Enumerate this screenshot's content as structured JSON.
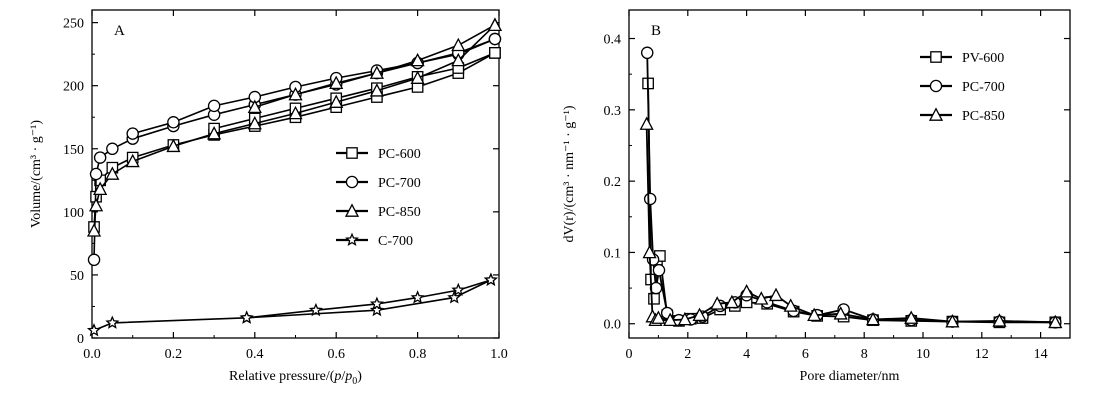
{
  "chart_data": [
    {
      "type": "line",
      "panel_label": "A",
      "xlabel": "Relative pressure/(p/p0)",
      "xlabel_parts": [
        "Relative pressure/(",
        "p",
        "/",
        "p",
        "0",
        ")"
      ],
      "ylabel": "Volume/(cm³ · g⁻¹)",
      "xlim": [
        0.0,
        1.0
      ],
      "ylim": [
        0,
        260
      ],
      "xticks": [
        "0.0",
        "0.2",
        "0.4",
        "0.6",
        "0.8",
        "1.0"
      ],
      "xtick_values": [
        0.0,
        0.2,
        0.4,
        0.6,
        0.8,
        1.0
      ],
      "yticks": [
        "0",
        "50",
        "100",
        "150",
        "200",
        "250"
      ],
      "ytick_values": [
        0,
        50,
        100,
        150,
        200,
        250
      ],
      "legend_position": "center-right",
      "series": [
        {
          "name": "PC-600",
          "marker": "square",
          "adsorption": {
            "x": [
              0.005,
              0.01,
              0.02,
              0.05,
              0.1,
              0.2,
              0.3,
              0.4,
              0.5,
              0.6,
              0.7,
              0.8,
              0.9,
              0.99
            ],
            "y": [
              88,
              112,
              125,
              135,
              143,
              153,
              161,
              168,
              175,
              183,
              191,
              199,
              210,
              226
            ]
          },
          "desorption": {
            "x": [
              0.99,
              0.9,
              0.8,
              0.7,
              0.6,
              0.5,
              0.4,
              0.3
            ],
            "y": [
              226,
              214,
              207,
              198,
              190,
              182,
              174,
              166
            ]
          }
        },
        {
          "name": "PC-700",
          "marker": "circle",
          "adsorption": {
            "x": [
              0.005,
              0.01,
              0.02,
              0.05,
              0.1,
              0.2,
              0.3,
              0.4,
              0.5,
              0.6,
              0.7,
              0.8,
              0.9,
              0.99
            ],
            "y": [
              62,
              130,
              143,
              150,
              158,
              168,
              177,
              185,
              193,
              201,
              210,
              218,
              225,
              237
            ]
          },
          "desorption": {
            "x": [
              0.99,
              0.9,
              0.8,
              0.7,
              0.6,
              0.5,
              0.4,
              0.3,
              0.2,
              0.1
            ],
            "y": [
              237,
              226,
              218,
              212,
              206,
              199,
              191,
              184,
              171,
              162
            ]
          }
        },
        {
          "name": "PC-850",
          "marker": "triangle",
          "adsorption": {
            "x": [
              0.005,
              0.01,
              0.02,
              0.05,
              0.1,
              0.2,
              0.3,
              0.4,
              0.5,
              0.6,
              0.7,
              0.8,
              0.9,
              0.99
            ],
            "y": [
              85,
              105,
              118,
              130,
              140,
              152,
              162,
              170,
              178,
              187,
              196,
              206,
              220,
              248
            ]
          },
          "desorption": {
            "x": [
              0.99,
              0.9,
              0.8,
              0.7,
              0.6,
              0.5,
              0.4
            ],
            "y": [
              248,
              232,
              220,
              210,
              202,
              193,
              183
            ]
          }
        },
        {
          "name": "C-700",
          "marker": "star",
          "adsorption": {
            "x": [
              0.005,
              0.05,
              0.38,
              0.7,
              0.89,
              0.98
            ],
            "y": [
              6,
              12,
              16,
              22,
              32,
              46
            ]
          },
          "desorption": {
            "x": [
              0.98,
              0.9,
              0.8,
              0.7,
              0.55,
              0.38
            ],
            "y": [
              46,
              38,
              32,
              27,
              22,
              16
            ]
          }
        }
      ]
    },
    {
      "type": "line",
      "panel_label": "B",
      "xlabel": "Pore diameter/nm",
      "ylabel": "dV(r)/(cm³ · nm⁻¹ · g⁻¹)",
      "xlim": [
        0,
        15
      ],
      "ylim": [
        -0.02,
        0.44
      ],
      "xticks": [
        "0",
        "2",
        "4",
        "6",
        "8",
        "10",
        "12",
        "14"
      ],
      "xtick_values": [
        0,
        2,
        4,
        6,
        8,
        10,
        12,
        14
      ],
      "yticks": [
        "0.0",
        "0.1",
        "0.2",
        "0.3",
        "0.4"
      ],
      "ytick_values": [
        0.0,
        0.1,
        0.2,
        0.3,
        0.4
      ],
      "legend_position": "top-right",
      "series": [
        {
          "name": "PV-600",
          "marker": "square",
          "x": [
            0.65,
            0.75,
            0.85,
            0.95,
            1.05,
            1.3,
            1.7,
            2.1,
            2.5,
            3.1,
            3.6,
            4.0,
            4.7,
            5.6,
            6.4,
            7.3,
            8.3,
            9.6,
            11.0,
            12.6,
            14.5
          ],
          "y": [
            0.337,
            0.062,
            0.035,
            0.09,
            0.095,
            0.012,
            0.004,
            0.007,
            0.008,
            0.02,
            0.025,
            0.03,
            0.028,
            0.017,
            0.011,
            0.01,
            0.005,
            0.004,
            0.003,
            0.002,
            0.002
          ]
        },
        {
          "name": "PC-700",
          "marker": "circle",
          "x": [
            0.62,
            0.72,
            0.82,
            0.92,
            1.02,
            1.3,
            1.7,
            2.1,
            2.5,
            3.1,
            3.6,
            4.0,
            4.7,
            5.6,
            6.4,
            7.3,
            8.3,
            9.6,
            11.0,
            12.6,
            14.5
          ],
          "y": [
            0.38,
            0.175,
            0.09,
            0.05,
            0.075,
            0.015,
            0.005,
            0.006,
            0.01,
            0.025,
            0.03,
            0.04,
            0.03,
            0.018,
            0.012,
            0.02,
            0.006,
            0.005,
            0.003,
            0.003,
            0.002
          ]
        },
        {
          "name": "PC-850",
          "marker": "triangle",
          "x": [
            0.6,
            0.7,
            0.8,
            0.9,
            1.0,
            1.4,
            1.9,
            2.4,
            3.0,
            3.5,
            4.0,
            4.5,
            5.0,
            5.5,
            6.3,
            7.2,
            8.3,
            9.6,
            11.0,
            12.6,
            14.5
          ],
          "y": [
            0.28,
            0.1,
            0.01,
            0.005,
            0.008,
            0.005,
            0.006,
            0.012,
            0.028,
            0.03,
            0.045,
            0.035,
            0.04,
            0.025,
            0.012,
            0.014,
            0.006,
            0.008,
            0.003,
            0.004,
            0.002
          ]
        }
      ]
    }
  ]
}
